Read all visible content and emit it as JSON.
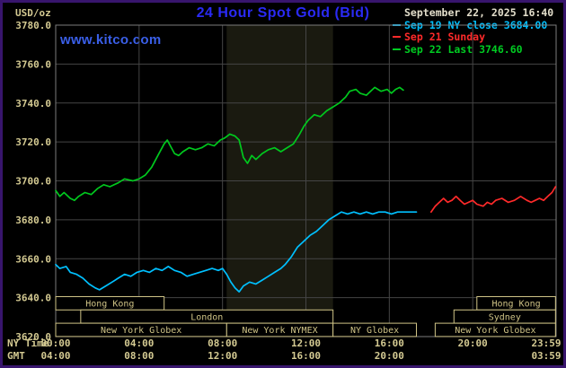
{
  "header": {
    "units_label": "USD/oz",
    "title": "24 Hour Spot Gold (Bid)",
    "timestamp": "September 22, 2025 16:40",
    "watermark": "www.kitco.com"
  },
  "legend": {
    "position": "top-right",
    "items": [
      {
        "id": "sep19",
        "label": "Sep 19 NY close 3684.00",
        "color": "#00c0ff"
      },
      {
        "id": "sep21",
        "label": "Sep 21 Sunday",
        "color": "#ff2a2a"
      },
      {
        "id": "sep22",
        "label": "Sep 22 Last 3746.60",
        "color": "#00cc22"
      }
    ]
  },
  "chart_data": {
    "type": "line",
    "title": "24 Hour Spot Gold (Bid)",
    "xlabel": "NY Time",
    "ylabel": "USD/oz",
    "xlim_hours": [
      0,
      24
    ],
    "ylim": [
      3620,
      3780
    ],
    "grid": true,
    "legend_position": "top-right",
    "axis_row_labels": {
      "ny": "NY Time",
      "gmt": "GMT"
    },
    "colors": {
      "grid": "#454545",
      "spine": "#7d7d7d",
      "axis_text": "#d4ca92",
      "session": "#cfc386",
      "shading": "#1a1a10",
      "background": "#000000",
      "border": "#38156d",
      "title": "#2a2af5",
      "watermark": "#3a5fe8",
      "timestamp_text": "#e3decb"
    },
    "yticks": [
      {
        "value": 3780,
        "label": "3780.0"
      },
      {
        "value": 3760,
        "label": "3760.0"
      },
      {
        "value": 3740,
        "label": "3740.0"
      },
      {
        "value": 3720,
        "label": "3720.0"
      },
      {
        "value": 3700,
        "label": "3700.0"
      },
      {
        "value": 3680,
        "label": "3680.0"
      },
      {
        "value": 3660,
        "label": "3660.0"
      },
      {
        "value": 3640,
        "label": "3640.0"
      },
      {
        "value": 3620,
        "label": "3620.0"
      }
    ],
    "xticks_ny": [
      {
        "hour": 0,
        "label": "00:00",
        "grid": true
      },
      {
        "hour": 4,
        "label": "04:00",
        "grid": true
      },
      {
        "hour": 8,
        "label": "08:00",
        "grid": true
      },
      {
        "hour": 12,
        "label": "12:00",
        "grid": true
      },
      {
        "hour": 16,
        "label": "16:00",
        "grid": true
      },
      {
        "hour": 20,
        "label": "20:00",
        "grid": true
      },
      {
        "hour": 23.97,
        "label": "23:59",
        "grid": false
      }
    ],
    "xticks_gmt": [
      {
        "hour": 0,
        "label": "04:00"
      },
      {
        "hour": 4,
        "label": "08:00"
      },
      {
        "hour": 8,
        "label": "12:00"
      },
      {
        "hour": 12,
        "label": "16:00"
      },
      {
        "hour": 16,
        "label": "20:00"
      },
      {
        "hour": 23.97,
        "label": "03:59"
      }
    ],
    "shaded_hours": [
      8.2,
      13.3
    ],
    "sessions": [
      {
        "row": 0,
        "start": 0,
        "end": 5.2,
        "label": "Hong Kong"
      },
      {
        "row": 0,
        "start": 20.2,
        "end": 23.97,
        "label": "Hong Kong"
      },
      {
        "row": 1,
        "start": 1.2,
        "end": 13.3,
        "label": "London"
      },
      {
        "row": 1,
        "start": 19.1,
        "end": 23.97,
        "label": "Sydney"
      },
      {
        "row": 2,
        "start": 0,
        "end": 8.2,
        "label": "New York Globex"
      },
      {
        "row": 2,
        "start": 8.2,
        "end": 13.3,
        "label": "New York NYMEX"
      },
      {
        "row": 2,
        "start": 13.3,
        "end": 17.3,
        "label": "NY Globex"
      },
      {
        "row": 2,
        "start": 18.2,
        "end": 23.97,
        "label": "New York Globex"
      }
    ],
    "series": [
      {
        "id": "sep19-ny-close",
        "name": "Sep 19 NY close",
        "close": 3684.0,
        "color": "#00c0ff",
        "points": [
          [
            0,
            3657
          ],
          [
            0.2,
            3655
          ],
          [
            0.5,
            3656
          ],
          [
            0.7,
            3653
          ],
          [
            1,
            3652
          ],
          [
            1.3,
            3650
          ],
          [
            1.6,
            3647
          ],
          [
            1.9,
            3645
          ],
          [
            2.1,
            3644
          ],
          [
            2.4,
            3646
          ],
          [
            2.7,
            3648
          ],
          [
            3,
            3650
          ],
          [
            3.3,
            3652
          ],
          [
            3.6,
            3651
          ],
          [
            3.9,
            3653
          ],
          [
            4.2,
            3654
          ],
          [
            4.5,
            3653
          ],
          [
            4.8,
            3655
          ],
          [
            5.1,
            3654
          ],
          [
            5.4,
            3656
          ],
          [
            5.7,
            3654
          ],
          [
            6,
            3653
          ],
          [
            6.3,
            3651
          ],
          [
            6.6,
            3652
          ],
          [
            6.9,
            3653
          ],
          [
            7.2,
            3654
          ],
          [
            7.5,
            3655
          ],
          [
            7.8,
            3654
          ],
          [
            8,
            3655
          ],
          [
            8.2,
            3652
          ],
          [
            8.4,
            3648
          ],
          [
            8.6,
            3645
          ],
          [
            8.8,
            3643
          ],
          [
            9,
            3646
          ],
          [
            9.3,
            3648
          ],
          [
            9.6,
            3647
          ],
          [
            9.9,
            3649
          ],
          [
            10.2,
            3651
          ],
          [
            10.5,
            3653
          ],
          [
            10.8,
            3655
          ],
          [
            11,
            3657
          ],
          [
            11.3,
            3661
          ],
          [
            11.6,
            3666
          ],
          [
            11.9,
            3669
          ],
          [
            12.2,
            3672
          ],
          [
            12.5,
            3674
          ],
          [
            12.8,
            3677
          ],
          [
            13.1,
            3680
          ],
          [
            13.4,
            3682
          ],
          [
            13.7,
            3684
          ],
          [
            14,
            3683
          ],
          [
            14.3,
            3684
          ],
          [
            14.6,
            3683
          ],
          [
            14.9,
            3684
          ],
          [
            15.2,
            3683
          ],
          [
            15.5,
            3684
          ],
          [
            15.8,
            3684
          ],
          [
            16.1,
            3683
          ],
          [
            16.4,
            3684
          ],
          [
            16.8,
            3684
          ],
          [
            17.1,
            3684
          ],
          [
            17.3,
            3684
          ]
        ]
      },
      {
        "id": "sep21-sunday",
        "name": "Sep 21 Sunday",
        "color": "#ff2a2a",
        "points": [
          [
            18,
            3684
          ],
          [
            18.2,
            3687
          ],
          [
            18.4,
            3689
          ],
          [
            18.6,
            3691
          ],
          [
            18.8,
            3689
          ],
          [
            19,
            3690
          ],
          [
            19.2,
            3692
          ],
          [
            19.4,
            3690
          ],
          [
            19.6,
            3688
          ],
          [
            19.8,
            3689
          ],
          [
            20,
            3690
          ],
          [
            20.2,
            3688
          ],
          [
            20.5,
            3687
          ],
          [
            20.7,
            3689
          ],
          [
            20.9,
            3688
          ],
          [
            21.1,
            3690
          ],
          [
            21.4,
            3691
          ],
          [
            21.7,
            3689
          ],
          [
            22,
            3690
          ],
          [
            22.3,
            3692
          ],
          [
            22.6,
            3690
          ],
          [
            22.8,
            3689
          ],
          [
            23,
            3690
          ],
          [
            23.2,
            3691
          ],
          [
            23.4,
            3690
          ],
          [
            23.6,
            3692
          ],
          [
            23.8,
            3694
          ],
          [
            23.97,
            3697
          ]
        ]
      },
      {
        "id": "sep22-current",
        "name": "Sep 22",
        "last": 3746.6,
        "color": "#00c81e",
        "points": [
          [
            0,
            3695
          ],
          [
            0.2,
            3692
          ],
          [
            0.4,
            3694
          ],
          [
            0.7,
            3691
          ],
          [
            0.9,
            3690
          ],
          [
            1.1,
            3692
          ],
          [
            1.4,
            3694
          ],
          [
            1.7,
            3693
          ],
          [
            2,
            3696
          ],
          [
            2.3,
            3698
          ],
          [
            2.6,
            3697
          ],
          [
            3,
            3699
          ],
          [
            3.3,
            3701
          ],
          [
            3.7,
            3700
          ],
          [
            4,
            3701
          ],
          [
            4.3,
            3703
          ],
          [
            4.6,
            3707
          ],
          [
            4.9,
            3713
          ],
          [
            5.2,
            3719
          ],
          [
            5.35,
            3721
          ],
          [
            5.5,
            3718
          ],
          [
            5.7,
            3714
          ],
          [
            5.9,
            3713
          ],
          [
            6.1,
            3715
          ],
          [
            6.4,
            3717
          ],
          [
            6.7,
            3716
          ],
          [
            7,
            3717
          ],
          [
            7.3,
            3719
          ],
          [
            7.6,
            3718
          ],
          [
            7.9,
            3721
          ],
          [
            8.1,
            3722
          ],
          [
            8.35,
            3724
          ],
          [
            8.6,
            3723
          ],
          [
            8.8,
            3721
          ],
          [
            9,
            3712
          ],
          [
            9.2,
            3709
          ],
          [
            9.4,
            3713
          ],
          [
            9.6,
            3711
          ],
          [
            9.9,
            3714
          ],
          [
            10.2,
            3716
          ],
          [
            10.5,
            3717
          ],
          [
            10.8,
            3715
          ],
          [
            11.1,
            3717
          ],
          [
            11.4,
            3719
          ],
          [
            11.7,
            3724
          ],
          [
            11.9,
            3728
          ],
          [
            12.1,
            3731
          ],
          [
            12.4,
            3734
          ],
          [
            12.7,
            3733
          ],
          [
            13,
            3736
          ],
          [
            13.3,
            3738
          ],
          [
            13.6,
            3740
          ],
          [
            13.9,
            3743
          ],
          [
            14.1,
            3746
          ],
          [
            14.4,
            3747
          ],
          [
            14.6,
            3745
          ],
          [
            14.9,
            3744
          ],
          [
            15.1,
            3746
          ],
          [
            15.3,
            3748
          ],
          [
            15.6,
            3746
          ],
          [
            15.9,
            3747
          ],
          [
            16.1,
            3745
          ],
          [
            16.3,
            3747
          ],
          [
            16.5,
            3748
          ],
          [
            16.67,
            3746.6
          ]
        ]
      }
    ]
  }
}
